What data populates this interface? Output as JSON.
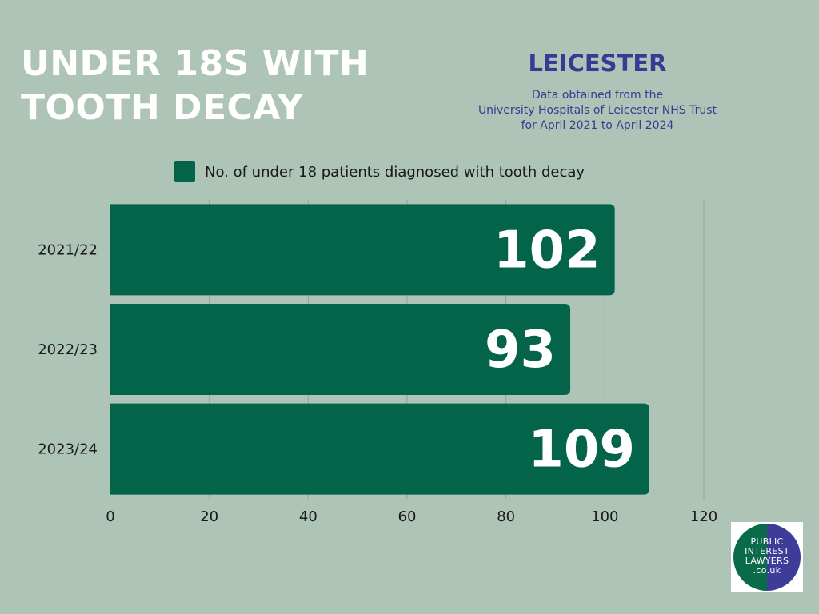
{
  "header": {
    "title_line1": "UNDER 18S WITH",
    "title_line2": "TOOTH DECAY",
    "region": "LEICESTER",
    "source_line1": "Data obtained from the",
    "source_line2": "University Hospitals of Leicester NHS Trust",
    "source_line3": "for April 2021 to April 2024"
  },
  "legend": {
    "label": "No. of under 18 patients diagnosed with tooth decay"
  },
  "colors": {
    "background": "#adc4b7",
    "bar": "#03644a",
    "title": "#ffffff",
    "accent": "#3a3994"
  },
  "chart_data": {
    "type": "bar",
    "orientation": "horizontal",
    "categories": [
      "2021/22",
      "2022/23",
      "2023/24"
    ],
    "series": [
      {
        "name": "No. of under 18 patients diagnosed with tooth decay",
        "values": [
          102,
          93,
          109
        ]
      }
    ],
    "xlim": [
      0,
      120
    ],
    "xticks": [
      0,
      20,
      40,
      60,
      80,
      100,
      120
    ],
    "grid": true,
    "legend_position": "top"
  },
  "logo": {
    "line1": "PUBLIC",
    "line2": "INTEREST",
    "line3": "LAWYERS",
    "line4": ".co.uk"
  }
}
